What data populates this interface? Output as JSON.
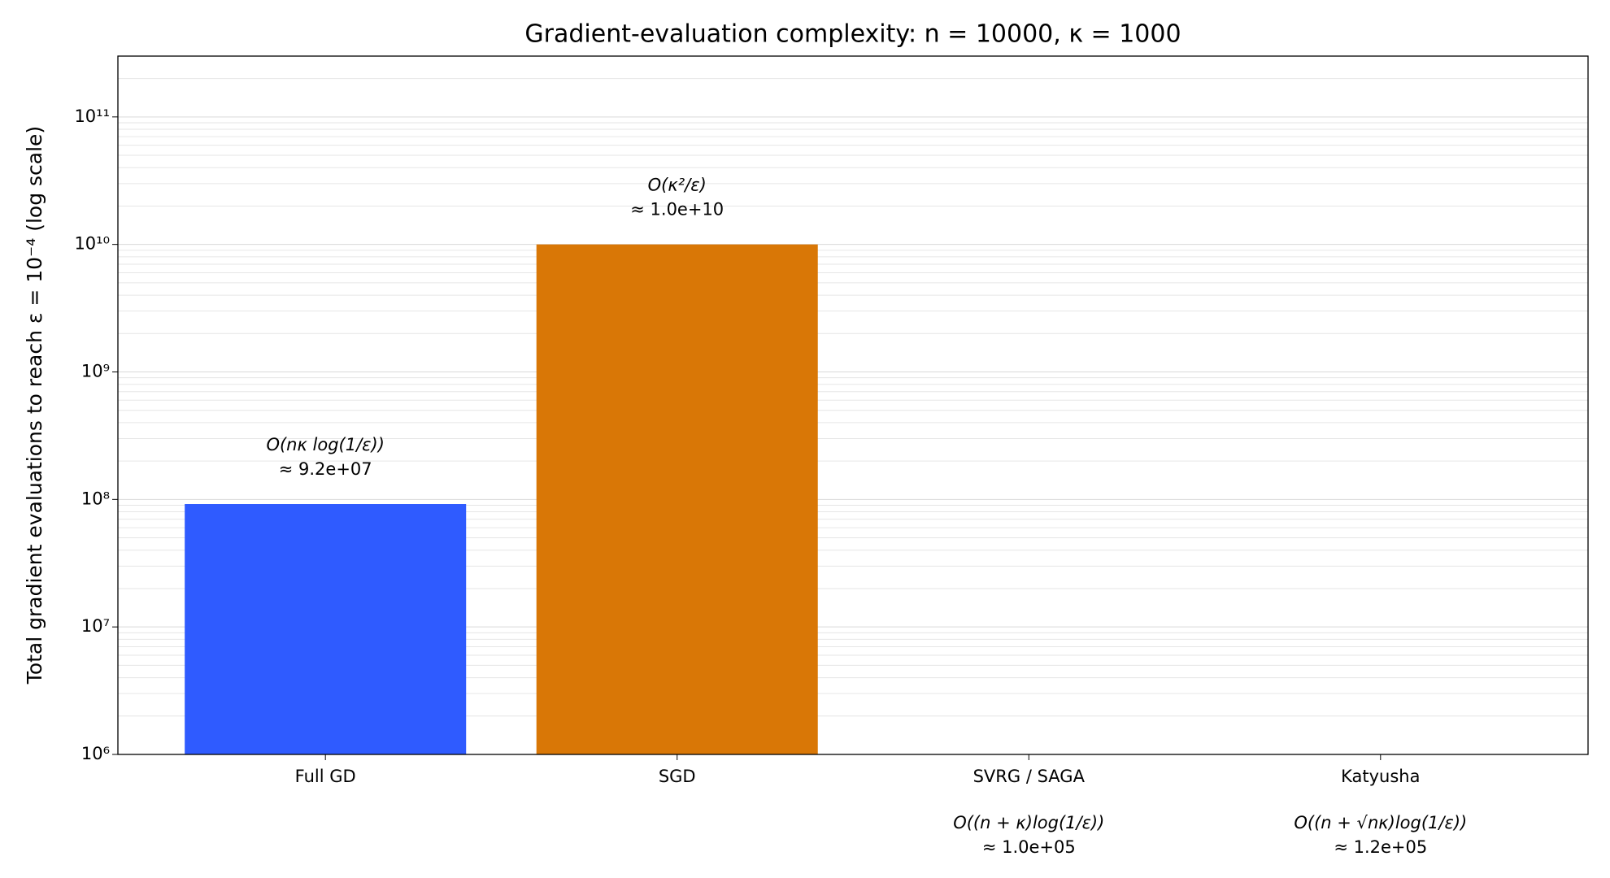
{
  "chart_data": {
    "type": "bar",
    "title": "Gradient-evaluation complexity: n = 10000, κ = 1000",
    "y_label": "Total gradient evaluations to reach ε = 10⁻⁴ (log scale)",
    "categories": [
      "Full GD",
      "SGD",
      "SVRG / SAGA",
      "Katyusha"
    ],
    "values": [
      92000000,
      10000000000,
      100000,
      120000
    ],
    "value_labels": [
      "≈ 9.2e+07",
      "≈ 1.0e+10",
      "≈ 1.0e+05",
      "≈ 1.2e+05"
    ],
    "annotations": [
      "O(nκ log(1/ε))",
      "O(κ²/ε)",
      "O((n + κ)log(1/ε))",
      "O((n + √nκ)log(1/ε))"
    ],
    "colors": [
      "#2f5bff",
      "#d97706",
      "#2ca02c",
      "#9467bd"
    ],
    "log_y": true,
    "ylim": [
      1000000,
      300000000000
    ],
    "yticks": [
      {
        "value": 1000000,
        "label": "10⁶"
      },
      {
        "value": 10000000,
        "label": "10⁷"
      },
      {
        "value": 100000000,
        "label": "10⁸"
      },
      {
        "value": 1000000000,
        "label": "10⁹"
      },
      {
        "value": 10000000000,
        "label": "10¹⁰"
      },
      {
        "value": 100000000000,
        "label": "10¹¹"
      }
    ],
    "grid": true
  }
}
